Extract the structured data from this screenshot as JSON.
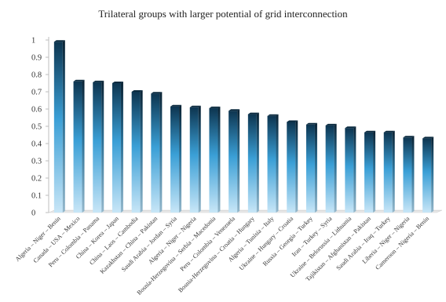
{
  "chart_data": {
    "type": "bar",
    "title": "Trilateral groups with larger potential of grid interconnection",
    "xlabel": "",
    "ylabel": "",
    "ylim": [
      0,
      1
    ],
    "yticks": [
      "0",
      "0.1",
      "0.2",
      "0.3",
      "0.4",
      "0.5",
      "0.6",
      "0.7",
      "0.8",
      "0.9",
      "1"
    ],
    "grid": false,
    "legend": "none",
    "bar_color_top": "#0d3550",
    "bar_color_mid": "#3a9fd6",
    "bar_color_bottom": "#c8e6f7",
    "categories": [
      "Algeria – Niger – Benin",
      "Canada – USA – Mexico",
      "Peru – Colombia – Panama",
      "China – Korea – Japan",
      "China – Laos – Cambodia",
      "Kazakhstan – China – Pakistan",
      "Saudi Arabia – Jordan – Syria",
      "Algeria – Niger – Nigeria",
      "Bosnia-Herzegovina – Serbia – Macedonia",
      "Peru – Colombia – Venezuela",
      "Bosnia-Herzegovina – Croatia – Hungary",
      "Algeria – Tunisia – Italy",
      "Ukraine – Hungary – Croatia",
      "Russia – Georgia – Turkey",
      "Iran – Turkey – Syria",
      "Ukraine – Belorussia – Lithuania",
      "Tajikistan – Afghanistan – Pakistan",
      "Saudi Arabia – Iraq – Turkey",
      "Liberia – Niger – Nigeria",
      "Cameroon – Nigeria – Benin"
    ],
    "values": [
      0.99,
      0.76,
      0.755,
      0.75,
      0.7,
      0.69,
      0.615,
      0.61,
      0.605,
      0.59,
      0.57,
      0.56,
      0.525,
      0.51,
      0.505,
      0.49,
      0.465,
      0.465,
      0.435,
      0.43
    ]
  }
}
